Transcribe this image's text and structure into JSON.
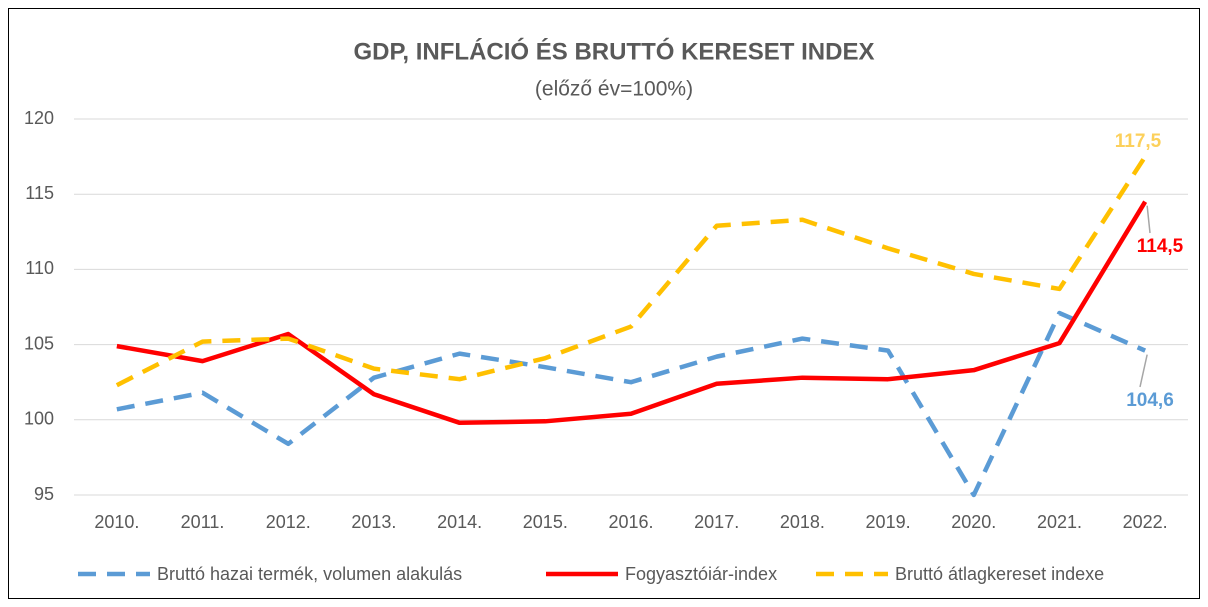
{
  "chart_data": {
    "type": "line",
    "title": "GDP, INFLÁCIÓ ÉS BRUTTÓ KERESET INDEX",
    "subtitle": "(előző év=100%)",
    "categories": [
      "2010.",
      "2011.",
      "2012.",
      "2013.",
      "2014.",
      "2015.",
      "2016.",
      "2017.",
      "2018.",
      "2019.",
      "2020.",
      "2021.",
      "2022."
    ],
    "series": [
      {
        "name": "Bruttó hazai termék, volumen alakulás",
        "color": "#5b9bd5",
        "dashed": true,
        "values": [
          100.7,
          101.8,
          98.4,
          102.8,
          104.4,
          103.5,
          102.5,
          104.2,
          105.4,
          104.6,
          95.0,
          107.1,
          104.6
        ],
        "value_labels": [
          null,
          null,
          null,
          null,
          null,
          null,
          null,
          null,
          null,
          null,
          null,
          null,
          "104,6"
        ]
      },
      {
        "name": "Fogyasztóiár-index",
        "color": "#ff0000",
        "dashed": false,
        "values": [
          104.9,
          103.9,
          105.7,
          101.7,
          99.8,
          99.9,
          100.4,
          102.4,
          102.8,
          102.7,
          103.3,
          105.1,
          114.5
        ],
        "value_labels": [
          null,
          null,
          null,
          null,
          null,
          null,
          null,
          null,
          null,
          null,
          null,
          null,
          "114,5"
        ]
      },
      {
        "name": "Bruttó átlagkereset indexe",
        "color": "#ffc000",
        "dashed": true,
        "values": [
          102.3,
          105.2,
          105.4,
          103.4,
          102.7,
          104.1,
          106.2,
          112.9,
          113.3,
          111.4,
          109.7,
          108.7,
          117.5
        ],
        "value_labels": [
          null,
          null,
          null,
          null,
          null,
          null,
          null,
          null,
          null,
          null,
          null,
          null,
          "117,5"
        ]
      }
    ],
    "ylim": [
      95,
      120
    ],
    "yticks": [
      95,
      100,
      105,
      110,
      115,
      120
    ],
    "grid": true,
    "legend": "bottom"
  }
}
